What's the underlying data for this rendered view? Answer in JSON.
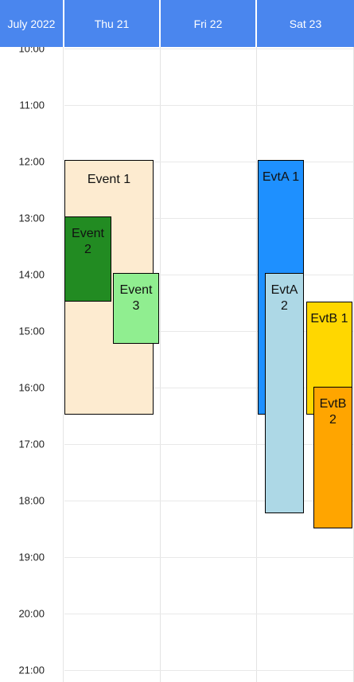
{
  "header": {
    "month_label": "July 2022",
    "days": [
      "Thu 21",
      "Fri 22",
      "Sat 23"
    ]
  },
  "time_labels": [
    "10:00",
    "11:00",
    "12:00",
    "13:00",
    "14:00",
    "15:00",
    "16:00",
    "17:00",
    "18:00",
    "19:00",
    "20:00",
    "21:00"
  ],
  "events": {
    "event1": {
      "label": "Event 1",
      "color": "#FDEBD0"
    },
    "event2": {
      "label": "Event 2",
      "color": "#228B22"
    },
    "event3": {
      "label": "Event 3",
      "color": "#90EE90"
    },
    "evta1": {
      "label": "EvtA 1",
      "color": "#1E90FF"
    },
    "evta2": {
      "label": "EvtA 2",
      "color": "#ADD8E6"
    },
    "evtb1": {
      "label": "EvtB 1",
      "color": "#FFD700"
    },
    "evtb2": {
      "label": "EvtB 2",
      "color": "#FFA500"
    }
  }
}
